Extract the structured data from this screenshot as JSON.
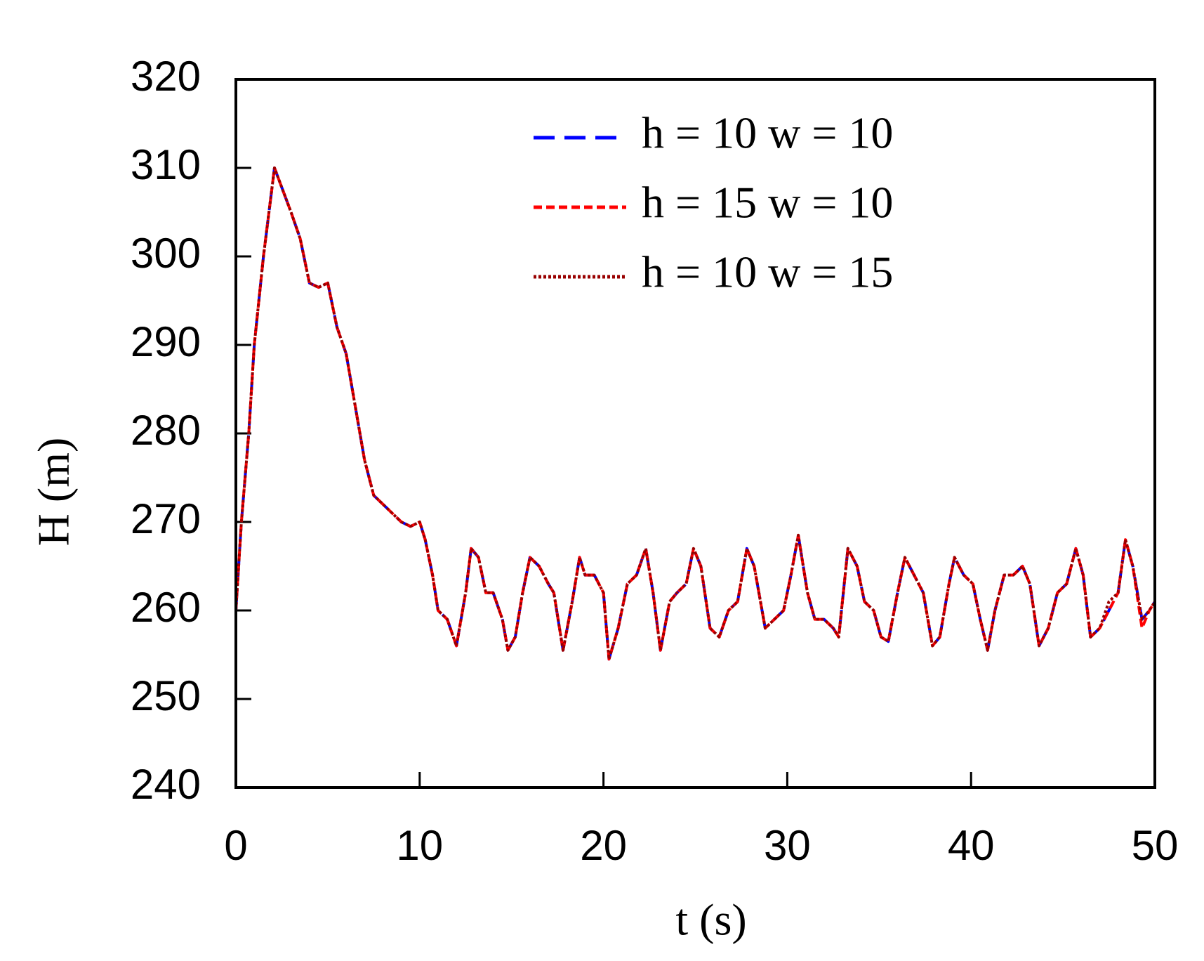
{
  "chart_data": {
    "type": "line",
    "x_label": "t (s)",
    "y_label": "H (m)",
    "xlim": [
      0,
      50
    ],
    "xticks": [
      0,
      10,
      20,
      30,
      40,
      50
    ],
    "ylim": [
      240,
      320
    ],
    "yticks": [
      240,
      250,
      260,
      270,
      280,
      290,
      300,
      310,
      320
    ],
    "legend": "upper right",
    "x": [
      0,
      0.3,
      0.7,
      1,
      1.5,
      2.1,
      3,
      3.5,
      4,
      4.5,
      5,
      5.5,
      6,
      6.5,
      7,
      7.5,
      8,
      8.5,
      9,
      9.5,
      10,
      10.3,
      10.7,
      11,
      11.5,
      12,
      12.5,
      12.8,
      13.2,
      13.6,
      14,
      14.5,
      14.8,
      15.2,
      15.6,
      16,
      16.5,
      17,
      17.3,
      17.8,
      18.3,
      18.7,
      19,
      19.5,
      20,
      20.3,
      20.8,
      21.3,
      21.8,
      22.3,
      22.7,
      23.1,
      23.6,
      24,
      24.5,
      24.9,
      25.3,
      25.8,
      26.3,
      26.8,
      27.3,
      27.8,
      28.2,
      28.8,
      29.3,
      29.8,
      30.2,
      30.6,
      31.1,
      31.5,
      32,
      32.5,
      32.8,
      33.3,
      33.8,
      34.2,
      34.7,
      35.1,
      35.5,
      36,
      36.4,
      36.9,
      37.4,
      37.9,
      38.3,
      38.8,
      39.1,
      39.6,
      40.1,
      40.5,
      40.9,
      41.3,
      41.8,
      42.3,
      42.8,
      43.2,
      43.7,
      44.2,
      44.7,
      45.2,
      45.7,
      46.1,
      46.5,
      47,
      47.5,
      48,
      48.4,
      48.8,
      49.3,
      49.7,
      50
    ],
    "series": [
      {
        "name": "h = 10 w = 10",
        "color": "#0000ff",
        "dash": "long",
        "values": [
          260,
          270,
          280,
          290,
          300,
          310,
          305,
          302,
          297,
          296.5,
          297,
          292,
          289,
          283,
          277,
          273,
          272,
          271,
          270,
          269.5,
          270,
          268,
          264,
          260,
          259,
          256,
          262,
          267,
          266,
          262,
          262,
          259,
          255.5,
          257,
          262,
          266,
          265,
          263,
          262,
          255.5,
          261,
          266,
          264,
          264,
          262,
          254.5,
          258,
          263,
          264,
          267,
          262,
          255.5,
          261,
          262,
          263,
          267,
          265,
          258,
          257,
          260,
          261,
          267,
          265,
          258,
          259,
          260,
          264,
          268.5,
          262,
          259,
          259,
          258,
          257,
          267,
          265,
          261,
          260,
          257,
          256.5,
          262,
          266,
          264,
          262,
          256,
          257,
          263,
          266,
          264,
          263,
          259,
          255.5,
          260,
          264,
          264,
          265,
          263,
          256,
          258,
          262,
          263,
          267,
          264,
          257,
          258,
          260,
          262,
          268,
          265,
          259,
          260,
          261
        ]
      },
      {
        "name": "h = 15 w = 10",
        "color": "#ff0000",
        "dash": "short",
        "values": [
          260,
          270,
          280,
          290,
          300,
          310,
          305,
          302,
          297,
          296.5,
          297,
          292,
          289,
          283,
          277,
          273,
          272,
          271,
          270,
          269.5,
          270,
          268,
          264,
          260,
          259,
          256,
          262,
          267,
          266,
          262,
          262,
          259,
          255.5,
          257,
          262,
          266,
          265,
          263,
          262,
          255.5,
          261,
          266,
          264,
          264,
          262,
          254.5,
          258,
          263,
          264,
          267,
          262,
          255.5,
          261,
          262,
          263,
          267,
          265,
          258,
          257,
          260,
          261,
          267,
          265,
          258,
          259,
          260,
          264,
          268.5,
          262,
          259,
          259,
          258,
          257,
          267,
          265,
          261,
          260,
          257,
          256.5,
          262,
          266,
          264,
          262,
          256,
          257,
          263,
          266,
          264,
          263,
          259,
          255.5,
          260,
          264,
          264,
          265,
          263,
          256,
          258,
          262,
          263,
          267,
          264,
          257,
          258,
          260,
          262,
          268,
          265,
          258,
          260,
          261
        ]
      },
      {
        "name": "h = 10 w = 15",
        "color": "#990000",
        "dash": "dot",
        "values": [
          260,
          270,
          280,
          290,
          300,
          310,
          305,
          302,
          297,
          296.5,
          297,
          292,
          289,
          283,
          277,
          273,
          272,
          271,
          270,
          269.5,
          270,
          268,
          264,
          260,
          259,
          256,
          262,
          267,
          266,
          262,
          262,
          259,
          255.5,
          257,
          262,
          266,
          265,
          263,
          262,
          255.5,
          261,
          266,
          264,
          264,
          262,
          254.5,
          258,
          263,
          264,
          267,
          262,
          255.5,
          261,
          262,
          263,
          267,
          265,
          258,
          257,
          260,
          261,
          267,
          265,
          258,
          259,
          260,
          264,
          268.5,
          262,
          259,
          259,
          258,
          257,
          267,
          265,
          261,
          260,
          257,
          256.5,
          262,
          266,
          264,
          262,
          256,
          257,
          263,
          266,
          264,
          263,
          259,
          255.5,
          260,
          264,
          264,
          265,
          263,
          256,
          258,
          262,
          263,
          267,
          264,
          257,
          258,
          261,
          262,
          268,
          265,
          259,
          260,
          261
        ]
      }
    ]
  }
}
